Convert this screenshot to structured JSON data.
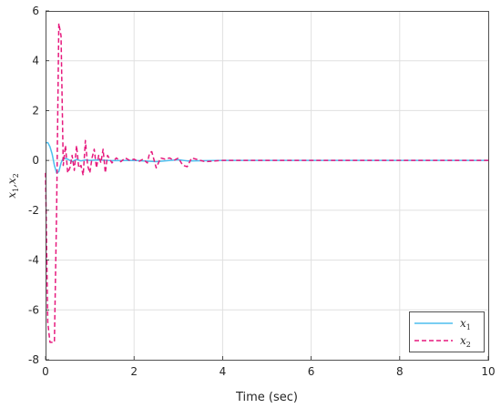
{
  "chart_data": {
    "type": "line",
    "title": "",
    "xlabel": "Time (sec)",
    "ylabel": {
      "main1": "x",
      "sub1": "1",
      "sep": ",",
      "main2": "x",
      "sub2": "2"
    },
    "xlim": [
      0,
      10
    ],
    "ylim": [
      -8,
      6
    ],
    "xticks": [
      "0",
      "2",
      "4",
      "6",
      "8",
      "10"
    ],
    "yticks": [
      "6",
      "4",
      "2",
      "0",
      "-2",
      "-4",
      "-6",
      "-8"
    ],
    "grid": true,
    "legend_position": "bottom-right",
    "series": [
      {
        "name": "x1",
        "legend_main": "x",
        "legend_sub": "1",
        "color": "#4DBEEE",
        "dash": "solid",
        "x": [
          0,
          0.05,
          0.1,
          0.15,
          0.2,
          0.25,
          0.3,
          0.35,
          0.4,
          0.5,
          0.6,
          0.7,
          0.8,
          0.9,
          1.0,
          1.2,
          1.5,
          2.0,
          2.5,
          3.0,
          3.2,
          4.0,
          10.0
        ],
        "y": [
          0.7,
          0.72,
          0.55,
          0.25,
          -0.2,
          -0.5,
          -0.45,
          -0.1,
          0.1,
          0.05,
          -0.05,
          0.04,
          -0.02,
          0.02,
          0.0,
          0.02,
          -0.01,
          0.0,
          -0.05,
          0.03,
          -0.02,
          0.0,
          0.0
        ]
      },
      {
        "name": "x2",
        "legend_main": "x",
        "legend_sub": "2",
        "color": "#E6197D",
        "dash": "dashed",
        "x": [
          0,
          0.05,
          0.1,
          0.15,
          0.2,
          0.25,
          0.3,
          0.35,
          0.4,
          0.45,
          0.5,
          0.55,
          0.6,
          0.65,
          0.7,
          0.75,
          0.8,
          0.85,
          0.9,
          0.95,
          1.0,
          1.05,
          1.1,
          1.15,
          1.2,
          1.25,
          1.3,
          1.35,
          1.4,
          1.5,
          1.6,
          1.7,
          1.8,
          1.9,
          2.0,
          2.1,
          2.2,
          2.3,
          2.35,
          2.4,
          2.5,
          2.6,
          2.7,
          2.8,
          2.9,
          3.0,
          3.1,
          3.2,
          3.3,
          3.4,
          3.6,
          4.0,
          5.0,
          10.0
        ],
        "y": [
          -0.5,
          -6.5,
          -7.3,
          -7.3,
          -7.3,
          -2.0,
          5.5,
          5.0,
          -0.2,
          0.6,
          -0.5,
          -0.3,
          0.2,
          -0.4,
          0.6,
          -0.3,
          -0.2,
          -0.6,
          0.8,
          -0.2,
          -0.5,
          0.1,
          0.45,
          -0.3,
          0.2,
          -0.1,
          0.45,
          -0.5,
          0.2,
          -0.1,
          0.1,
          -0.05,
          0.1,
          0.0,
          0.05,
          -0.05,
          0.05,
          -0.1,
          0.3,
          0.35,
          -0.3,
          0.1,
          0.05,
          0.1,
          0.0,
          0.1,
          -0.2,
          -0.25,
          0.1,
          0.05,
          -0.05,
          0.0,
          0.0,
          0.0
        ]
      }
    ]
  }
}
